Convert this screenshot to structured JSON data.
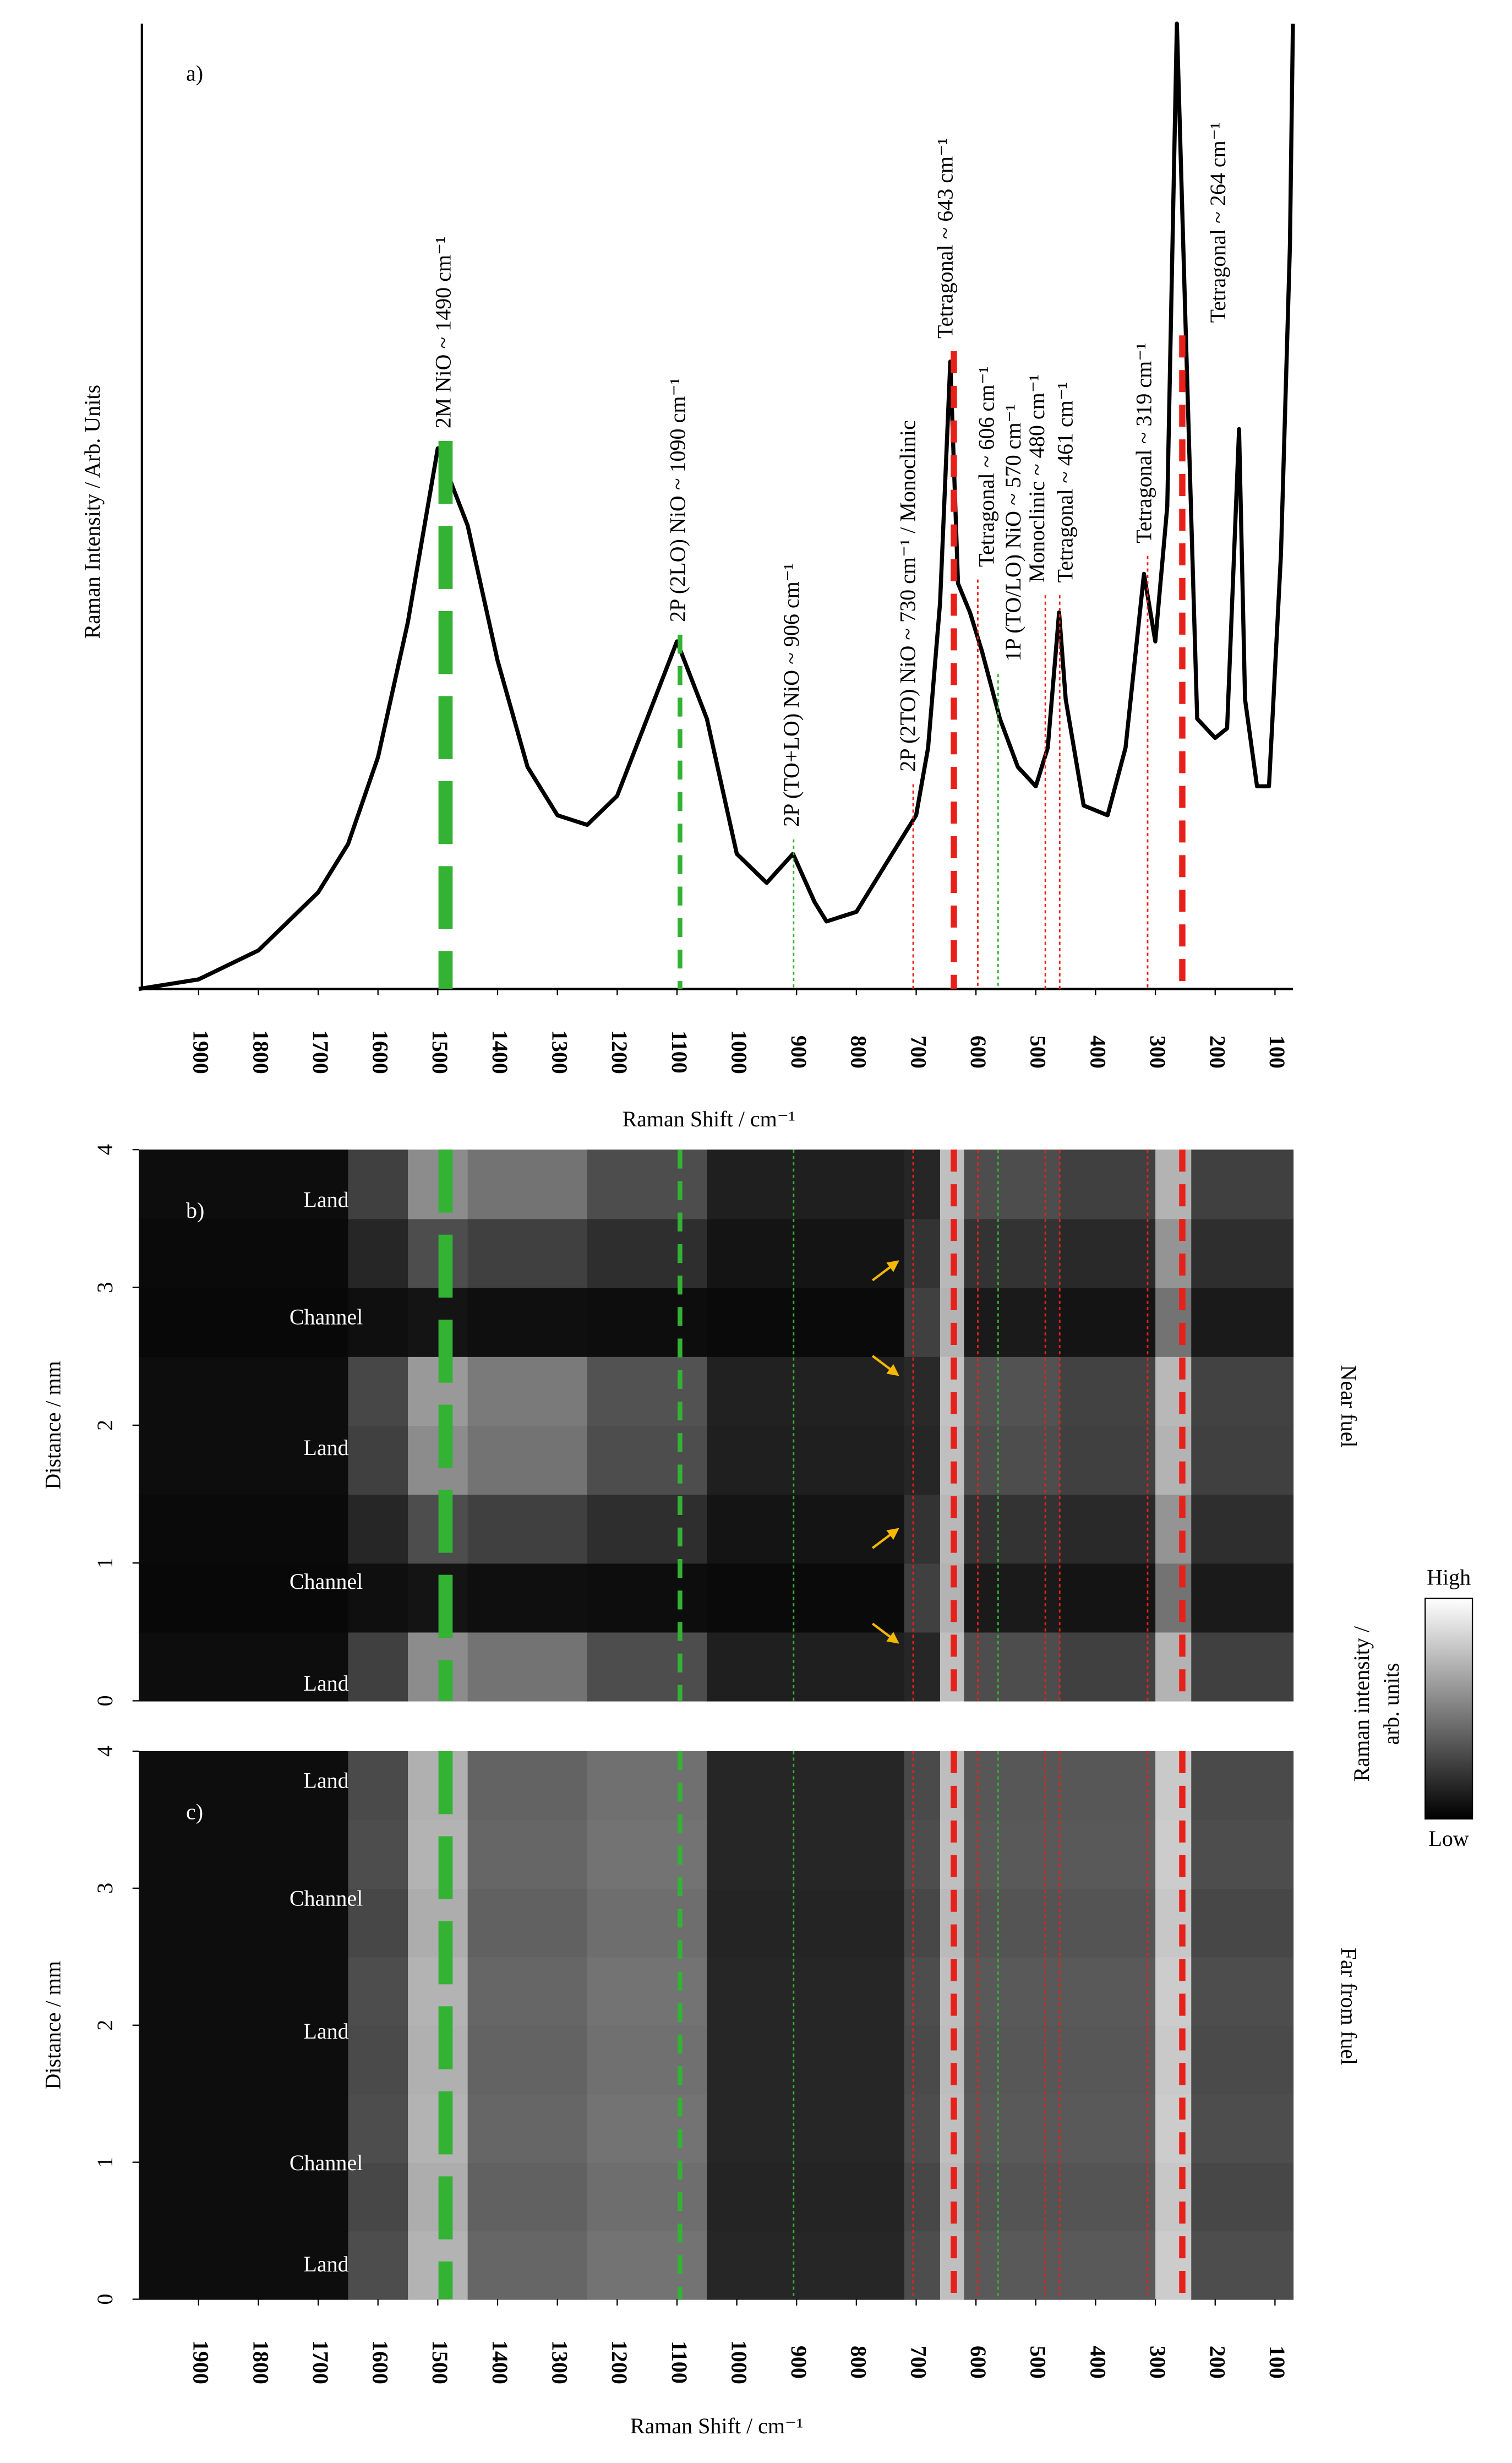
{
  "chart_data": [
    {
      "type": "line",
      "panel_label": "a)",
      "xlabel": "Raman Shift / cm⁻¹",
      "ylabel": "Raman Intensity / Arb. Units",
      "color": "#000000",
      "xlim": [
        2000,
        70
      ],
      "ylim": [
        0,
        100
      ],
      "xticks": [
        1900,
        1800,
        1700,
        1600,
        1500,
        1400,
        1300,
        1200,
        1100,
        1000,
        900,
        800,
        700,
        600,
        500,
        400,
        300,
        200,
        100
      ],
      "x": [
        2000,
        1900,
        1800,
        1700,
        1650,
        1600,
        1550,
        1500,
        1450,
        1400,
        1350,
        1300,
        1250,
        1200,
        1150,
        1100,
        1050,
        1000,
        950,
        906,
        870,
        850,
        800,
        750,
        720,
        700,
        680,
        660,
        643,
        630,
        610,
        590,
        560,
        530,
        500,
        480,
        461,
        450,
        420,
        380,
        350,
        319,
        300,
        280,
        264,
        250,
        230,
        200,
        180,
        160,
        150,
        130,
        110,
        90,
        75,
        70
      ],
      "values": [
        0,
        1,
        4,
        10,
        15,
        24,
        38,
        56,
        48,
        34,
        23,
        18,
        17,
        20,
        28,
        36,
        28,
        14,
        11,
        14,
        9,
        7,
        8,
        13,
        16,
        18,
        25,
        40,
        65,
        42,
        39,
        35,
        28,
        23,
        21,
        25,
        39,
        30,
        19,
        18,
        25,
        43,
        36,
        50,
        100,
        70,
        28,
        26,
        27,
        58,
        30,
        21,
        21,
        45,
        77,
        100
      ],
      "annotations": [
        {
          "x": 1487,
          "label": "2M NiO ~ 1490 cm⁻¹",
          "color": "#33b233",
          "style": "thick"
        },
        {
          "x": 1095,
          "label": "2P (2LO) NiO ~ 1090 cm⁻¹",
          "color": "#33b233",
          "style": "dashed"
        },
        {
          "x": 905,
          "label": "2P (TO+LO) NiO ~ 906 cm⁻¹",
          "color": "#33b233",
          "style": "dotted"
        },
        {
          "x": 705,
          "label": "2P (2TO) NiO ~ 730 cm⁻¹ / Monoclinic",
          "color": "#e8201a",
          "style": "dotted"
        },
        {
          "x": 637,
          "label": "Tetragonal ~ 643 cm⁻¹",
          "color": "#e8201a",
          "style": "dashed-red"
        },
        {
          "x": 597,
          "label": "Tetragonal ~ 606 cm⁻¹",
          "color": "#e8201a",
          "style": "dotted"
        },
        {
          "x": 563,
          "label": "1P (TO/LO) NiO ~ 570 cm⁻¹",
          "color": "#33b233",
          "style": "dotted"
        },
        {
          "x": 484,
          "label": "Monoclinic ~ 480 cm⁻¹",
          "color": "#e8201a",
          "style": "dotted"
        },
        {
          "x": 460,
          "label": "Tetragonal ~ 461 cm⁻¹",
          "color": "#e8201a",
          "style": "dotted"
        },
        {
          "x": 313,
          "label": "Tetragonal ~ 319 cm⁻¹",
          "color": "#e8201a",
          "style": "dotted"
        },
        {
          "x": 255,
          "label": "Tetragonal ~ 264 cm⁻¹",
          "color": "#e8201a",
          "style": "dashed-red"
        }
      ]
    },
    {
      "type": "heatmap",
      "panel_label": "b)",
      "ylabel": "Distance / mm",
      "side_label": "Near fuel",
      "xlim": [
        2000,
        70
      ],
      "ylim": [
        0,
        4
      ],
      "yticks": [
        0,
        1,
        2,
        3,
        4
      ],
      "colormap": [
        "#000000",
        "#ffffff"
      ],
      "xbins": [
        2000,
        1650,
        1550,
        1450,
        1250,
        1050,
        720,
        660,
        620,
        460,
        300,
        240,
        70
      ],
      "ybins": [
        0,
        0.5,
        1,
        1.5,
        2,
        2.5,
        3,
        3.5,
        4
      ],
      "values": [
        [
          5,
          25,
          55,
          45,
          30,
          12,
          15,
          75,
          30,
          25,
          70,
          25
        ],
        [
          3,
          6,
          8,
          6,
          5,
          4,
          25,
          70,
          10,
          8,
          45,
          10
        ],
        [
          4,
          15,
          30,
          25,
          18,
          8,
          20,
          72,
          20,
          16,
          58,
          18
        ],
        [
          5,
          25,
          55,
          45,
          30,
          12,
          15,
          75,
          30,
          25,
          70,
          25
        ],
        [
          5,
          28,
          60,
          48,
          32,
          13,
          16,
          76,
          32,
          26,
          72,
          26
        ],
        [
          3,
          6,
          8,
          6,
          5,
          4,
          25,
          70,
          10,
          8,
          45,
          10
        ],
        [
          4,
          15,
          30,
          25,
          18,
          8,
          20,
          72,
          20,
          16,
          58,
          18
        ],
        [
          5,
          25,
          55,
          45,
          30,
          12,
          15,
          75,
          30,
          25,
          70,
          25
        ]
      ],
      "regions": [
        {
          "label": "Land",
          "y": 3.62
        },
        {
          "label": "Channel",
          "y": 2.77
        },
        {
          "label": "Land",
          "y": 1.82
        },
        {
          "label": "Channel",
          "y": 0.85
        },
        {
          "label": "Land",
          "y": 0.11
        }
      ],
      "colorbar_label": [
        "Raman intensity /",
        "arb. units"
      ],
      "colorbar_high": "High",
      "colorbar_low": "Low"
    },
    {
      "type": "heatmap",
      "panel_label": "c)",
      "ylabel": "Distance / mm",
      "side_label": "Far from fuel",
      "xlabel": "Raman Shift / cm⁻¹",
      "xlim": [
        2000,
        70
      ],
      "ylim": [
        0,
        4
      ],
      "yticks": [
        0,
        1,
        2,
        3,
        4
      ],
      "colormap": [
        "#000000",
        "#ffffff"
      ],
      "xticks": [
        1900,
        1800,
        1700,
        1600,
        1500,
        1400,
        1300,
        1200,
        1100,
        1000,
        900,
        800,
        700,
        600,
        500,
        400,
        300,
        200,
        100
      ],
      "xbins": [
        2000,
        1650,
        1550,
        1450,
        1250,
        1050,
        720,
        660,
        620,
        460,
        300,
        240,
        70
      ],
      "ybins": [
        0,
        0.5,
        1,
        1.5,
        2,
        2.5,
        3,
        3.5,
        4
      ],
      "values": [
        [
          5,
          30,
          70,
          40,
          45,
          15,
          30,
          75,
          35,
          35,
          80,
          30
        ],
        [
          5,
          28,
          68,
          38,
          43,
          14,
          28,
          73,
          33,
          33,
          78,
          28
        ],
        [
          5,
          30,
          70,
          40,
          45,
          15,
          30,
          75,
          35,
          35,
          80,
          30
        ],
        [
          5,
          29,
          69,
          39,
          44,
          15,
          29,
          74,
          34,
          34,
          79,
          29
        ],
        [
          5,
          30,
          70,
          40,
          45,
          15,
          30,
          75,
          35,
          35,
          80,
          30
        ],
        [
          5,
          28,
          68,
          38,
          43,
          14,
          28,
          73,
          33,
          33,
          78,
          28
        ],
        [
          5,
          30,
          70,
          40,
          45,
          15,
          30,
          75,
          35,
          35,
          80,
          30
        ],
        [
          5,
          29,
          69,
          39,
          44,
          15,
          29,
          74,
          34,
          34,
          79,
          29
        ]
      ],
      "regions": [
        {
          "label": "Land",
          "y": 3.77
        },
        {
          "label": "Channel",
          "y": 2.91
        },
        {
          "label": "Land",
          "y": 1.94
        },
        {
          "label": "Channel",
          "y": 0.98
        },
        {
          "label": "Land",
          "y": 0.24
        }
      ]
    }
  ]
}
